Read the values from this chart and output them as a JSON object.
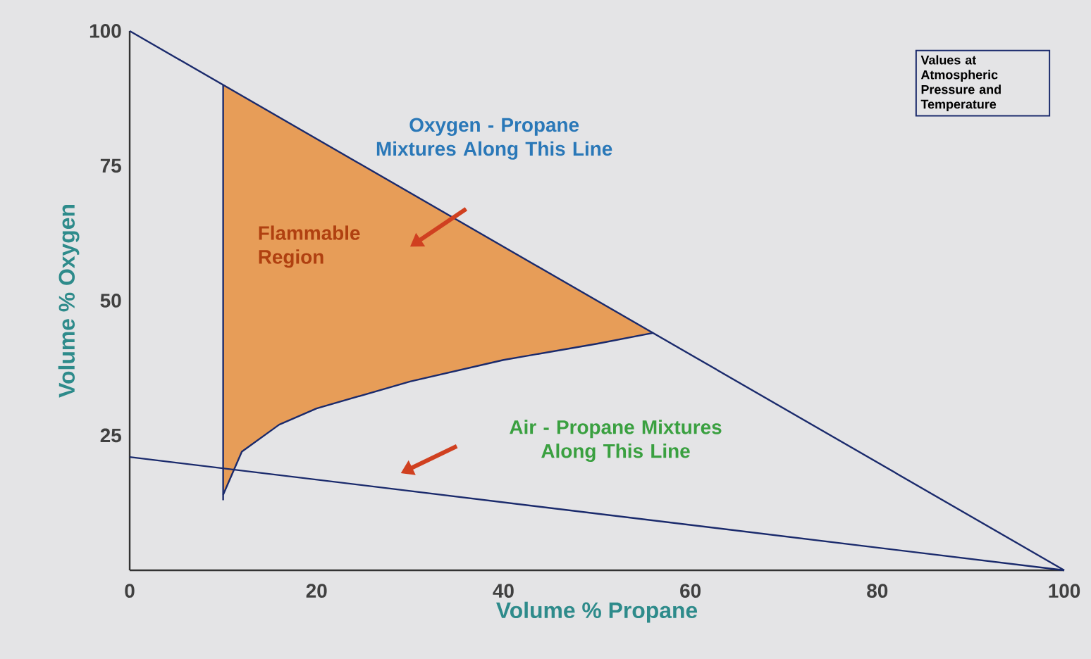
{
  "chart_data": {
    "type": "line",
    "xlabel": "Volume % Propane",
    "ylabel": "Volume % Oxygen",
    "xlim": [
      0,
      100
    ],
    "ylim": [
      0,
      100
    ],
    "xticks": [
      0,
      20,
      40,
      60,
      80,
      100
    ],
    "yticks": [
      25,
      50,
      75,
      100
    ],
    "marker": "none",
    "series": [
      {
        "color": "#1a2a6c",
        "x": [
          10,
          12,
          16,
          20,
          30,
          40,
          50,
          56
        ],
        "values": [
          14,
          22,
          27,
          30,
          35,
          39,
          42,
          44
        ],
        "lower": [
          14,
          22,
          27,
          30,
          35,
          39,
          42,
          44
        ],
        "upper": [
          90,
          88,
          84,
          80,
          70,
          60,
          50,
          44
        ]
      },
      {
        "color": "#1a2a6c",
        "x": [
          10,
          10
        ],
        "values": [
          13,
          90
        ]
      },
      {
        "color": "#1a2a6c",
        "x": [
          0,
          100
        ],
        "values": [
          100,
          0
        ]
      },
      {
        "color": "#1a2a6c",
        "x": [
          0,
          100
        ],
        "values": [
          21,
          0
        ]
      }
    ],
    "annotations": [
      "Oxygen - Propane Mixtures Along This Line",
      "Air - Propane Mixtures Along This Line",
      "Flammable Region",
      "Values at Atmospheric Pressure and Temperature"
    ]
  }
}
